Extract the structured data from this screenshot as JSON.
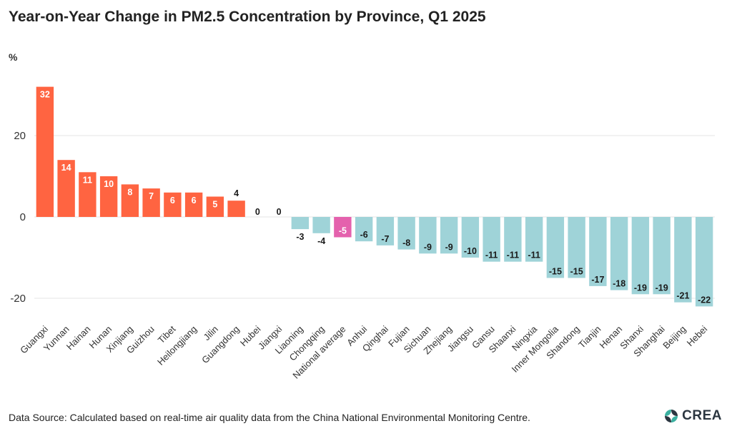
{
  "title": "Year-on-Year Change in PM2.5 Concentration by Province, Q1 2025",
  "footer": "Data Source: Calculated based on real-time air quality data from the China National Environmental Monitoring Centre.",
  "logo": {
    "text": "CREA",
    "icon": "crea-leaf-logo"
  },
  "colors": {
    "positive": "#ff6441",
    "negative": "#9fd3d8",
    "highlight": "#e461ad",
    "grid": "#e6e6e6"
  },
  "chart_data": {
    "type": "bar",
    "title": "Year-on-Year Change in PM2.5 Concentration by Province, Q1 2025",
    "ylabel": "%",
    "xlabel": "",
    "ylim": [
      -25,
      34
    ],
    "yticks": [
      -20,
      0,
      20
    ],
    "grid": true,
    "highlight_category": "National average",
    "categories": [
      "Guangxi",
      "Yunnan",
      "Hainan",
      "Hunan",
      "Xinjiang",
      "Guizhou",
      "Tibet",
      "Heilongjiang",
      "Jilin",
      "Guangdong",
      "Hubei",
      "Jiangxi",
      "Liaoning",
      "Chongqing",
      "National average",
      "Anhui",
      "Qinghai",
      "Fujian",
      "Sichuan",
      "Zhejiang",
      "Jiangsu",
      "Gansu",
      "Shaanxi",
      "Ningxia",
      "Inner Mongolia",
      "Shandong",
      "Tianjin",
      "Henan",
      "Shanxi",
      "Shanghai",
      "Beijing",
      "Hebei"
    ],
    "values": [
      32,
      14,
      11,
      10,
      8,
      7,
      6,
      6,
      5,
      4,
      0,
      0,
      -3,
      -4,
      -5,
      -6,
      -7,
      -8,
      -9,
      -9,
      -10,
      -11,
      -11,
      -11,
      -15,
      -15,
      -17,
      -18,
      -19,
      -19,
      -21,
      -22
    ]
  }
}
